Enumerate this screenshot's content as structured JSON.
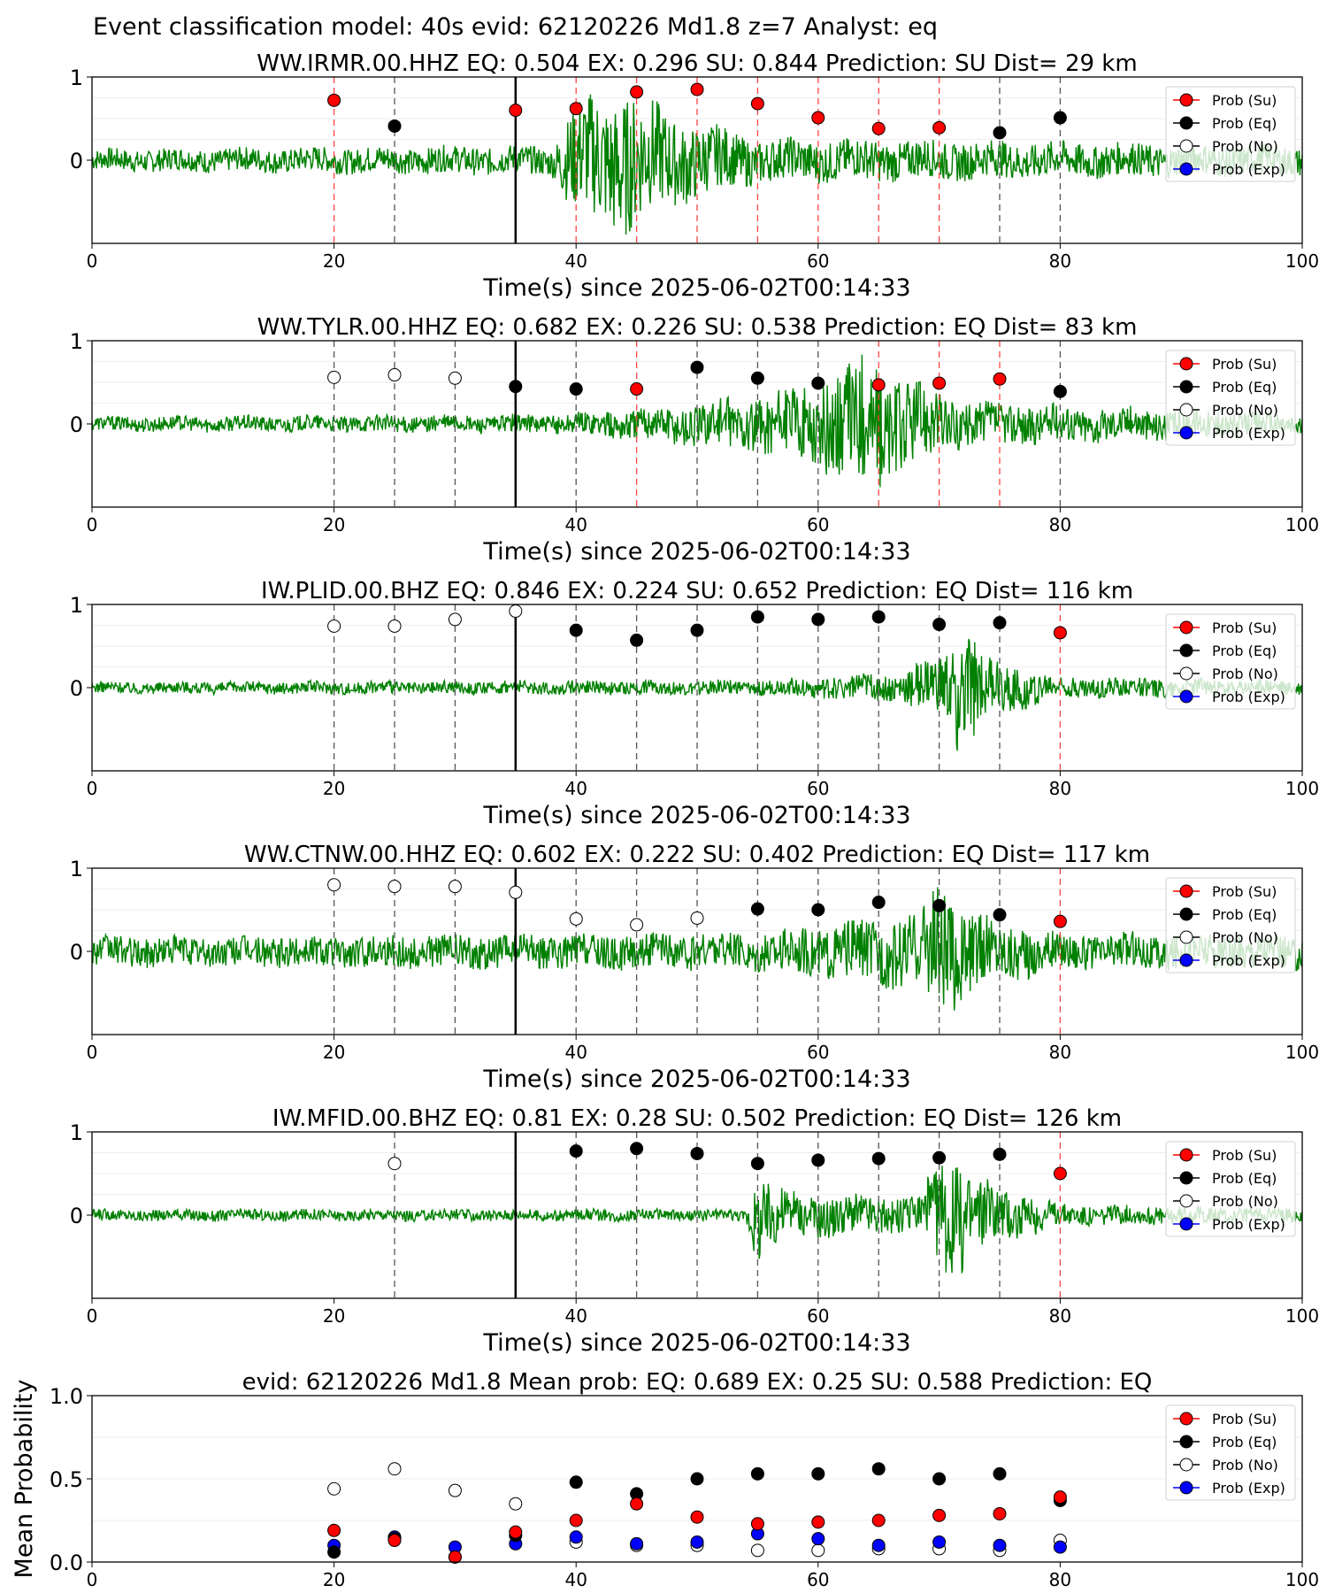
{
  "title": "Event classification model: 40s evid: 62120226 Md1.8 z=7 Analyst: eq",
  "x_axis_label": "Time(s) since 2025-06-02T00:14:33",
  "x_ticks": [
    "0",
    "20",
    "40",
    "60",
    "80",
    "100"
  ],
  "y_ticks_station": [
    "0",
    "1"
  ],
  "legend": [
    "Prob (Su)",
    "Prob (Eq)",
    "Prob (No)",
    "Prob (Exp)"
  ],
  "colors": {
    "su": "#ff0000",
    "eq": "#000000",
    "no": "#ffffff",
    "exp": "#0000ff",
    "waveform": "#008000",
    "su_line": "#ff4444",
    "eq_line": "#555555"
  },
  "chart_data": [
    {
      "type": "scatter",
      "title": "WW.IRMR.00.HHZ   EQ: 0.504  EX: 0.296  SU: 0.844   Prediction: SU    Dist= 29 km",
      "xlim": [
        0,
        100
      ],
      "ylim": [
        -1,
        1
      ],
      "pick_time": 35,
      "waveform_envelope": [
        [
          0,
          0.15
        ],
        [
          38,
          0.2
        ],
        [
          40,
          0.8
        ],
        [
          44,
          1.0
        ],
        [
          48,
          0.6
        ],
        [
          55,
          0.3
        ],
        [
          100,
          0.2
        ]
      ],
      "points": [
        {
          "x": 20,
          "y": 0.72,
          "class": "su"
        },
        {
          "x": 25,
          "y": 0.41,
          "class": "eq"
        },
        {
          "x": 35,
          "y": 0.6,
          "class": "su"
        },
        {
          "x": 40,
          "y": 0.62,
          "class": "su"
        },
        {
          "x": 45,
          "y": 0.82,
          "class": "su"
        },
        {
          "x": 50,
          "y": 0.85,
          "class": "su"
        },
        {
          "x": 55,
          "y": 0.68,
          "class": "su"
        },
        {
          "x": 60,
          "y": 0.51,
          "class": "su"
        },
        {
          "x": 65,
          "y": 0.38,
          "class": "su"
        },
        {
          "x": 70,
          "y": 0.39,
          "class": "su"
        },
        {
          "x": 75,
          "y": 0.33,
          "class": "eq"
        },
        {
          "x": 80,
          "y": 0.51,
          "class": "eq"
        }
      ]
    },
    {
      "type": "scatter",
      "title": "WW.TYLR.00.HHZ   EQ: 0.682  EX: 0.226  SU: 0.538   Prediction: EQ    Dist= 83 km",
      "xlim": [
        0,
        100
      ],
      "ylim": [
        -1,
        1
      ],
      "pick_time": 35,
      "waveform_envelope": [
        [
          0,
          0.1
        ],
        [
          34,
          0.12
        ],
        [
          40,
          0.15
        ],
        [
          50,
          0.3
        ],
        [
          58,
          0.45
        ],
        [
          64,
          0.9
        ],
        [
          68,
          0.6
        ],
        [
          72,
          0.3
        ],
        [
          100,
          0.15
        ]
      ],
      "points": [
        {
          "x": 20,
          "y": 0.56,
          "class": "no"
        },
        {
          "x": 25,
          "y": 0.59,
          "class": "no"
        },
        {
          "x": 30,
          "y": 0.55,
          "class": "no"
        },
        {
          "x": 35,
          "y": 0.45,
          "class": "eq"
        },
        {
          "x": 40,
          "y": 0.42,
          "class": "eq"
        },
        {
          "x": 45,
          "y": 0.42,
          "class": "su"
        },
        {
          "x": 50,
          "y": 0.68,
          "class": "eq"
        },
        {
          "x": 55,
          "y": 0.55,
          "class": "eq"
        },
        {
          "x": 60,
          "y": 0.49,
          "class": "eq"
        },
        {
          "x": 65,
          "y": 0.47,
          "class": "su"
        },
        {
          "x": 70,
          "y": 0.49,
          "class": "su"
        },
        {
          "x": 75,
          "y": 0.54,
          "class": "su"
        },
        {
          "x": 80,
          "y": 0.39,
          "class": "eq"
        }
      ]
    },
    {
      "type": "scatter",
      "title": "IW.PLID.00.BHZ   EQ: 0.846  EX: 0.224  SU: 0.652   Prediction: EQ    Dist= 116 km",
      "xlim": [
        0,
        100
      ],
      "ylim": [
        -1,
        1
      ],
      "pick_time": 35,
      "waveform_envelope": [
        [
          0,
          0.08
        ],
        [
          55,
          0.1
        ],
        [
          66,
          0.2
        ],
        [
          70,
          0.4
        ],
        [
          72,
          0.9
        ],
        [
          74,
          0.4
        ],
        [
          80,
          0.15
        ],
        [
          100,
          0.1
        ]
      ],
      "points": [
        {
          "x": 20,
          "y": 0.74,
          "class": "no"
        },
        {
          "x": 25,
          "y": 0.74,
          "class": "no"
        },
        {
          "x": 30,
          "y": 0.82,
          "class": "no"
        },
        {
          "x": 35,
          "y": 0.92,
          "class": "no"
        },
        {
          "x": 40,
          "y": 0.69,
          "class": "eq"
        },
        {
          "x": 45,
          "y": 0.57,
          "class": "eq"
        },
        {
          "x": 50,
          "y": 0.69,
          "class": "eq"
        },
        {
          "x": 55,
          "y": 0.85,
          "class": "eq"
        },
        {
          "x": 60,
          "y": 0.82,
          "class": "eq"
        },
        {
          "x": 65,
          "y": 0.85,
          "class": "eq"
        },
        {
          "x": 70,
          "y": 0.76,
          "class": "eq"
        },
        {
          "x": 75,
          "y": 0.78,
          "class": "eq"
        },
        {
          "x": 80,
          "y": 0.66,
          "class": "su"
        }
      ]
    },
    {
      "type": "scatter",
      "title": "WW.CTNW.00.HHZ   EQ: 0.602  EX: 0.222  SU: 0.402   Prediction: EQ    Dist= 117 km",
      "xlim": [
        0,
        100
      ],
      "ylim": [
        -1,
        1
      ],
      "pick_time": 35,
      "waveform_envelope": [
        [
          0,
          0.2
        ],
        [
          55,
          0.25
        ],
        [
          68,
          0.5
        ],
        [
          70,
          0.95
        ],
        [
          73,
          0.5
        ],
        [
          80,
          0.25
        ],
        [
          100,
          0.25
        ]
      ],
      "points": [
        {
          "x": 20,
          "y": 0.8,
          "class": "no"
        },
        {
          "x": 25,
          "y": 0.78,
          "class": "no"
        },
        {
          "x": 30,
          "y": 0.78,
          "class": "no"
        },
        {
          "x": 35,
          "y": 0.71,
          "class": "no"
        },
        {
          "x": 40,
          "y": 0.39,
          "class": "no"
        },
        {
          "x": 45,
          "y": 0.32,
          "class": "no"
        },
        {
          "x": 50,
          "y": 0.4,
          "class": "no"
        },
        {
          "x": 55,
          "y": 0.51,
          "class": "eq"
        },
        {
          "x": 60,
          "y": 0.5,
          "class": "eq"
        },
        {
          "x": 65,
          "y": 0.59,
          "class": "eq"
        },
        {
          "x": 70,
          "y": 0.55,
          "class": "eq"
        },
        {
          "x": 75,
          "y": 0.44,
          "class": "eq"
        },
        {
          "x": 80,
          "y": 0.36,
          "class": "su"
        }
      ]
    },
    {
      "type": "scatter",
      "title": "IW.MFID.00.BHZ   EQ: 0.81  EX: 0.28  SU: 0.502   Prediction: EQ    Dist= 126 km",
      "xlim": [
        0,
        100
      ],
      "ylim": [
        -1,
        1
      ],
      "pick_time": 35,
      "waveform_envelope": [
        [
          0,
          0.08
        ],
        [
          54,
          0.08
        ],
        [
          55,
          0.6
        ],
        [
          58,
          0.3
        ],
        [
          68,
          0.25
        ],
        [
          71,
          0.9
        ],
        [
          74,
          0.45
        ],
        [
          80,
          0.15
        ],
        [
          100,
          0.1
        ]
      ],
      "points": [
        {
          "x": 25,
          "y": 0.62,
          "class": "no"
        },
        {
          "x": 40,
          "y": 0.77,
          "class": "eq"
        },
        {
          "x": 45,
          "y": 0.8,
          "class": "eq"
        },
        {
          "x": 50,
          "y": 0.74,
          "class": "eq"
        },
        {
          "x": 55,
          "y": 0.62,
          "class": "eq"
        },
        {
          "x": 60,
          "y": 0.66,
          "class": "eq"
        },
        {
          "x": 65,
          "y": 0.68,
          "class": "eq"
        },
        {
          "x": 70,
          "y": 0.69,
          "class": "eq"
        },
        {
          "x": 75,
          "y": 0.73,
          "class": "eq"
        },
        {
          "x": 80,
          "y": 0.5,
          "class": "su"
        }
      ]
    },
    {
      "type": "scatter",
      "title": "evid: 62120226  Md1.8   Mean prob:   EQ: 0.689  EX: 0.25  SU: 0.588   Prediction: EQ",
      "ylabel": "Mean Probability",
      "xlim": [
        0,
        100
      ],
      "ylim": [
        0,
        1
      ],
      "y_ticks": [
        "0.0",
        "0.5",
        "1.0"
      ],
      "x": [
        20,
        25,
        30,
        35,
        40,
        45,
        50,
        55,
        60,
        65,
        70,
        75,
        80
      ],
      "series": [
        {
          "name": "Prob (No)",
          "class": "no",
          "values": [
            0.44,
            0.56,
            0.43,
            0.35,
            0.12,
            0.1,
            0.1,
            0.07,
            0.07,
            0.08,
            0.08,
            0.07,
            0.13
          ]
        },
        {
          "name": "Prob (Exp)",
          "class": "exp",
          "values": [
            0.1,
            0.15,
            0.09,
            0.11,
            0.15,
            0.11,
            0.12,
            0.17,
            0.14,
            0.1,
            0.12,
            0.1,
            0.09
          ]
        },
        {
          "name": "Prob (Eq)",
          "class": "eq",
          "values": [
            0.06,
            0.14,
            0.03,
            0.16,
            0.48,
            0.41,
            0.5,
            0.53,
            0.53,
            0.56,
            0.5,
            0.53,
            0.37
          ]
        },
        {
          "name": "Prob (Su)",
          "class": "su",
          "values": [
            0.19,
            0.13,
            0.03,
            0.18,
            0.25,
            0.35,
            0.27,
            0.23,
            0.24,
            0.25,
            0.28,
            0.29,
            0.39
          ]
        }
      ]
    }
  ]
}
